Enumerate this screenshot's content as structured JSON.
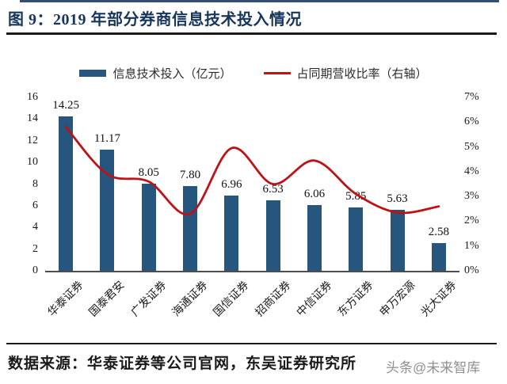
{
  "page": {
    "title": "图 9：2019 年部分券商信息技术投入情况",
    "source": "数据来源：华泰证券等公司官网，东吴证券研究所",
    "watermark": "头条@未来智库"
  },
  "colors": {
    "bar": "#26557E",
    "line": "#BE1216",
    "title_navy": "#17365D",
    "axis": "#4d4d4d"
  },
  "chart_data": {
    "type": "bar",
    "subtype": "bar+line combo",
    "title": "2019 年部分券商信息技术投入情况",
    "categories": [
      "华泰证券",
      "国泰君安",
      "广发证券",
      "海通证券",
      "国信证券",
      "招商证券",
      "中信证券",
      "东方证券",
      "申万宏源",
      "光大证券"
    ],
    "series": [
      {
        "name": "信息技术投入（亿元）",
        "type": "bar",
        "axis": "left",
        "values": [
          14.25,
          11.17,
          8.05,
          7.8,
          6.96,
          6.53,
          6.06,
          5.85,
          5.63,
          2.58
        ],
        "labels": [
          "14.25",
          "11.17",
          "8.05",
          "7.80",
          "6.96",
          "6.53",
          "6.06",
          "5.85",
          "5.63",
          "2.58"
        ]
      },
      {
        "name": "占同期营收比率（右轴）",
        "type": "line",
        "axis": "right",
        "values_percent": [
          5.8,
          3.9,
          3.6,
          2.3,
          4.95,
          3.5,
          4.45,
          3.1,
          2.35,
          2.6
        ]
      }
    ],
    "left_axis": {
      "min": 0,
      "max": 16,
      "step": 2,
      "ticks": [
        "16",
        "14",
        "12",
        "10",
        "8",
        "6",
        "4",
        "2",
        "0"
      ]
    },
    "right_axis": {
      "min": 0,
      "max": 7,
      "step": 1,
      "ticks": [
        "7%",
        "6%",
        "5%",
        "4%",
        "3%",
        "2%",
        "1%",
        "0%"
      ]
    },
    "legend_position": "top",
    "grid": false
  }
}
